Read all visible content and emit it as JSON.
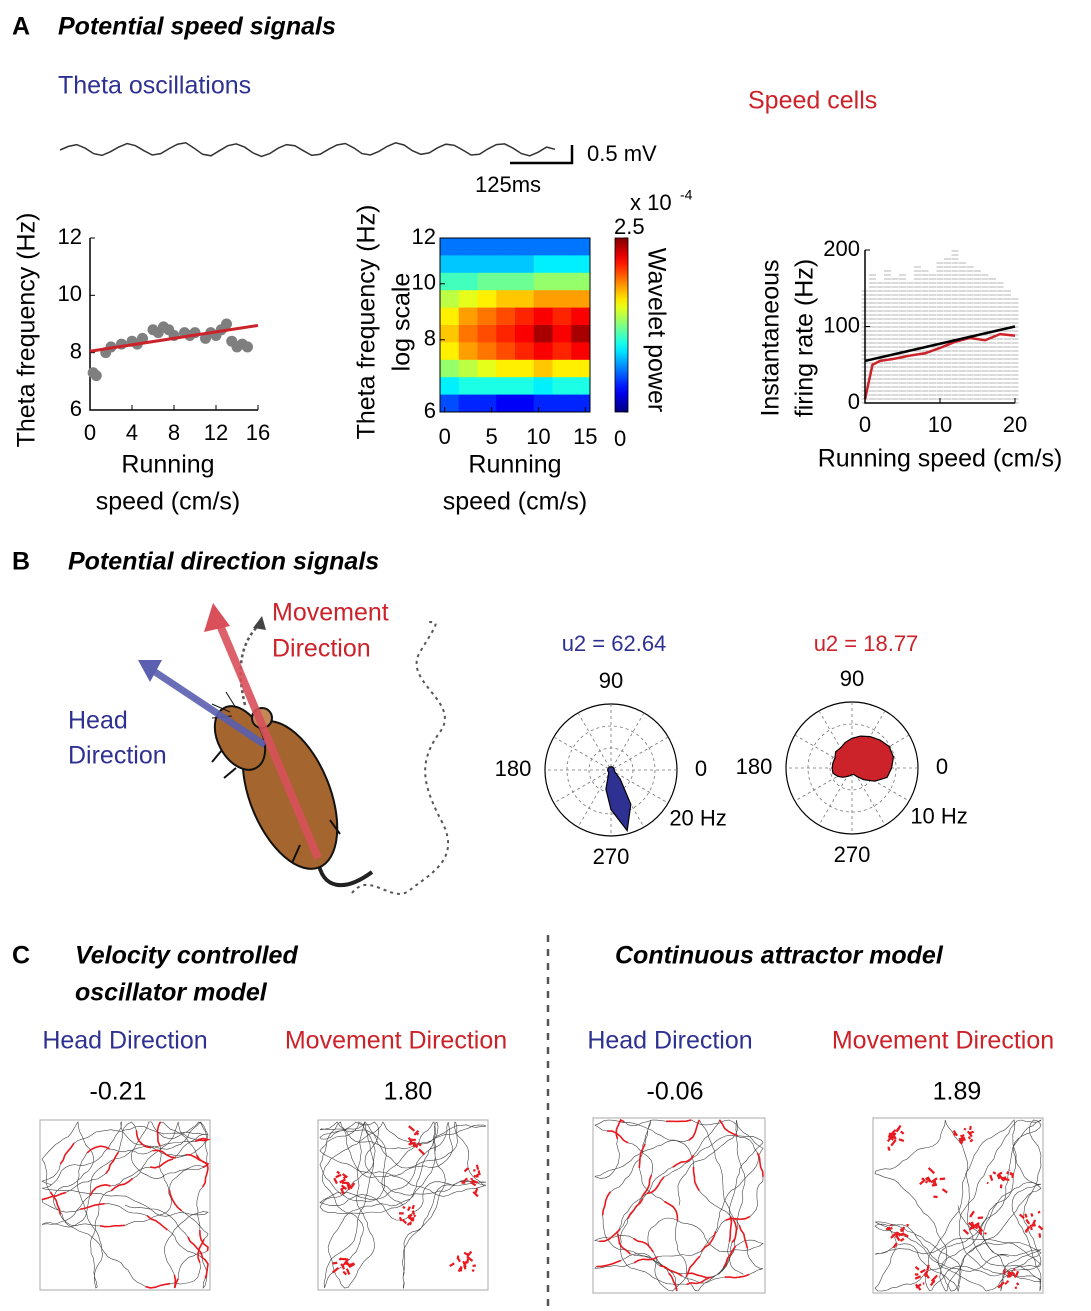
{
  "panel_a": {
    "letter": "A",
    "title": "Potential speed signals",
    "theta_label": "Theta oscillations",
    "speed_cells_label": "Speed cells",
    "trace": {
      "values": [
        0,
        0.1,
        0.15,
        0.05,
        -0.1,
        -0.15,
        -0.05,
        0.08,
        0.18,
        0.12,
        -0.02,
        -0.14,
        -0.1,
        0.04,
        0.16,
        0.2,
        0.05,
        -0.12,
        -0.16,
        -0.02,
        0.12,
        0.17,
        0.08,
        -0.08,
        -0.18,
        -0.1,
        0.05,
        0.15,
        0.12,
        -0.02,
        -0.15,
        -0.12,
        0.02,
        0.14,
        0.18,
        0.06,
        -0.1,
        -0.14,
        -0.04,
        0.1,
        0.2,
        0.14,
        -0.02,
        -0.12,
        -0.08,
        0.06,
        0.16,
        0.13,
        0.0,
        -0.14,
        -0.12,
        0.03,
        0.15,
        0.17,
        0.05,
        -0.1,
        -0.16,
        -0.06,
        0.08,
        0.02
      ],
      "color": "#333333",
      "scale_v": "0.5 mV",
      "scale_t": "125ms"
    },
    "freq_plot": {
      "type": "scatter",
      "ylabel": "Theta frequency (Hz)",
      "xlabel": [
        "Running",
        "speed (cm/s)"
      ],
      "x": [
        0.3,
        0.6,
        1.5,
        2,
        3,
        4,
        4.5,
        5,
        6,
        6.5,
        7,
        7.5,
        8,
        9,
        9.5,
        10,
        11,
        11.5,
        12,
        12.5,
        13,
        13.5,
        14,
        14.5,
        15
      ],
      "y": [
        7.3,
        7.2,
        8.0,
        8.2,
        8.3,
        8.4,
        8.3,
        8.5,
        8.8,
        8.7,
        8.9,
        8.8,
        8.6,
        8.7,
        8.6,
        8.7,
        8.5,
        8.7,
        8.6,
        8.8,
        9.0,
        8.4,
        8.2,
        8.3,
        8.2
      ],
      "color": "#7f7f7f",
      "fit": {
        "x": [
          0,
          16
        ],
        "y": [
          8.05,
          8.95
        ],
        "color": "#cc2229"
      },
      "xlim": [
        0,
        16
      ],
      "ylim": [
        6,
        12
      ],
      "xticks": [
        0,
        4,
        8,
        12,
        16
      ],
      "yticks": [
        6,
        8,
        10,
        12
      ]
    },
    "wavelet_plot": {
      "type": "heatmap",
      "ylabel": [
        "Theta frequency (Hz)",
        "log scale"
      ],
      "xlabel": [
        "Running",
        "speed (cm/s)"
      ],
      "xlim": [
        -0.5,
        15.5
      ],
      "ylim": [
        6,
        12
      ],
      "log_y": true,
      "xticks": [
        0,
        5,
        10,
        15
      ],
      "yticks": [
        6,
        8,
        10,
        12
      ],
      "values": [
        [
          0.6,
          0.6,
          0.6,
          0.6,
          0.6,
          0.6,
          0.6,
          0.6
        ],
        [
          0.8,
          0.8,
          0.8,
          0.8,
          0.8,
          0.9,
          0.9,
          0.9
        ],
        [
          1.1,
          1.1,
          1.2,
          1.2,
          1.2,
          1.3,
          1.3,
          1.3
        ],
        [
          1.4,
          1.5,
          1.6,
          1.7,
          1.7,
          1.8,
          1.8,
          1.8
        ],
        [
          1.6,
          1.8,
          1.9,
          2.0,
          2.1,
          2.2,
          2.1,
          2.2
        ],
        [
          1.7,
          1.9,
          2.0,
          2.1,
          2.2,
          2.4,
          2.2,
          2.4
        ],
        [
          1.6,
          1.8,
          1.9,
          2.0,
          2.1,
          2.2,
          2.1,
          2.2
        ],
        [
          1.3,
          1.4,
          1.5,
          1.6,
          1.6,
          1.7,
          1.6,
          1.6
        ],
        [
          0.9,
          1.0,
          1.0,
          1.0,
          1.0,
          0.9,
          1.0,
          1.0
        ],
        [
          0.5,
          0.4,
          0.4,
          0.3,
          0.3,
          0.4,
          0.4,
          0.4
        ]
      ],
      "colorbar": {
        "clim": [
          0,
          2.5
        ],
        "ticks": [
          0,
          2.5
        ],
        "label": "Wavelet power",
        "multiplier": "x 10",
        "exponent": "-4"
      }
    },
    "rate_plot": {
      "type": "line",
      "ylabel": [
        "Instantaneous",
        "firing rate (Hz)"
      ],
      "xlabel": "Running speed (cm/s)",
      "xlim": [
        0,
        20
      ],
      "ylim": [
        0,
        200
      ],
      "xticks": [
        0,
        10,
        20
      ],
      "yticks": [
        0,
        100,
        200
      ],
      "raster": {
        "x": [
          0,
          1,
          2,
          3,
          4,
          5,
          6,
          7,
          8,
          9,
          10,
          11,
          12,
          13,
          14,
          15,
          16,
          17,
          18,
          19,
          20
        ],
        "max": [
          150,
          170,
          160,
          175,
          165,
          170,
          160,
          180,
          175,
          170,
          185,
          190,
          200,
          185,
          180,
          175,
          170,
          165,
          160,
          150,
          140
        ],
        "color": "#b5b5b5"
      },
      "series": [
        {
          "x": [
            0,
            1,
            2,
            4,
            6,
            8,
            10,
            12,
            14,
            16,
            18,
            20
          ],
          "values": [
            5,
            50,
            55,
            58,
            62,
            65,
            72,
            80,
            85,
            82,
            90,
            88
          ],
          "color": "#cc2229"
        },
        {
          "x": [
            0,
            20
          ],
          "values": [
            55,
            100
          ],
          "color": "#000000"
        }
      ]
    }
  },
  "panel_b": {
    "letter": "B",
    "title": "Potential direction signals",
    "movement_label": [
      "Movement",
      "Direction"
    ],
    "head_label": [
      "Head",
      "Direction"
    ],
    "polar": [
      {
        "type": "polar",
        "u2": "u2 = 62.64",
        "color": "#2e3192",
        "rlim": [
          0,
          20
        ],
        "rtick": {
          "value": 20,
          "label": "20 Hz"
        },
        "angle_ticks": [
          0,
          90,
          180,
          270
        ],
        "theta": [
          0,
          15,
          30,
          45,
          60,
          75,
          90,
          105,
          120,
          135,
          150,
          165,
          180,
          195,
          210,
          225,
          240,
          255,
          270,
          285,
          300,
          315,
          330,
          345
        ],
        "values": [
          1,
          1,
          1,
          1,
          1,
          1,
          1,
          1,
          1,
          1,
          1,
          1,
          1,
          1,
          1,
          1,
          1.5,
          6,
          12,
          19,
          12,
          4,
          1.5,
          1
        ]
      },
      {
        "type": "polar",
        "u2": "u2 = 18.77",
        "color": "#cc2229",
        "rlim": [
          0,
          10
        ],
        "rtick": {
          "value": 10,
          "label": "10 Hz"
        },
        "angle_ticks": [
          0,
          90,
          180,
          270
        ],
        "theta": [
          0,
          15,
          30,
          45,
          60,
          75,
          90,
          105,
          120,
          135,
          150,
          165,
          180,
          195,
          210,
          225,
          240,
          255,
          270,
          285,
          300,
          315,
          330,
          345
        ],
        "values": [
          6,
          6.5,
          6.5,
          6,
          5.5,
          5,
          4.5,
          4,
          3.5,
          3.5,
          3,
          3,
          3,
          3,
          2.5,
          2,
          1.5,
          1.2,
          1,
          1,
          1.5,
          2.5,
          4,
          5.5
        ]
      }
    ]
  },
  "panel_c": {
    "letter": "C",
    "left_title": [
      "Velocity controlled",
      "oscillator model"
    ],
    "right_title": "Continuous attractor model",
    "maps": [
      {
        "label": "Head Direction",
        "color": "#2e3192",
        "score": "-0.21"
      },
      {
        "label": "Movement Direction",
        "color": "#cc2229",
        "score": "1.80",
        "fields": [
          [
            0.55,
            0.12
          ],
          [
            0.15,
            0.38
          ],
          [
            0.55,
            0.55
          ],
          [
            0.9,
            0.35
          ],
          [
            0.15,
            0.85
          ],
          [
            0.85,
            0.85
          ]
        ]
      },
      {
        "label": "Head Direction",
        "color": "#2e3192",
        "score": "-0.06"
      },
      {
        "label": "Movement Direction",
        "color": "#cc2229",
        "score": "1.89",
        "fields": [
          [
            0.1,
            0.1
          ],
          [
            0.55,
            0.1
          ],
          [
            0.35,
            0.38
          ],
          [
            0.75,
            0.35
          ],
          [
            0.15,
            0.65
          ],
          [
            0.6,
            0.62
          ],
          [
            0.95,
            0.6
          ],
          [
            0.3,
            0.9
          ],
          [
            0.82,
            0.9
          ]
        ]
      }
    ]
  }
}
